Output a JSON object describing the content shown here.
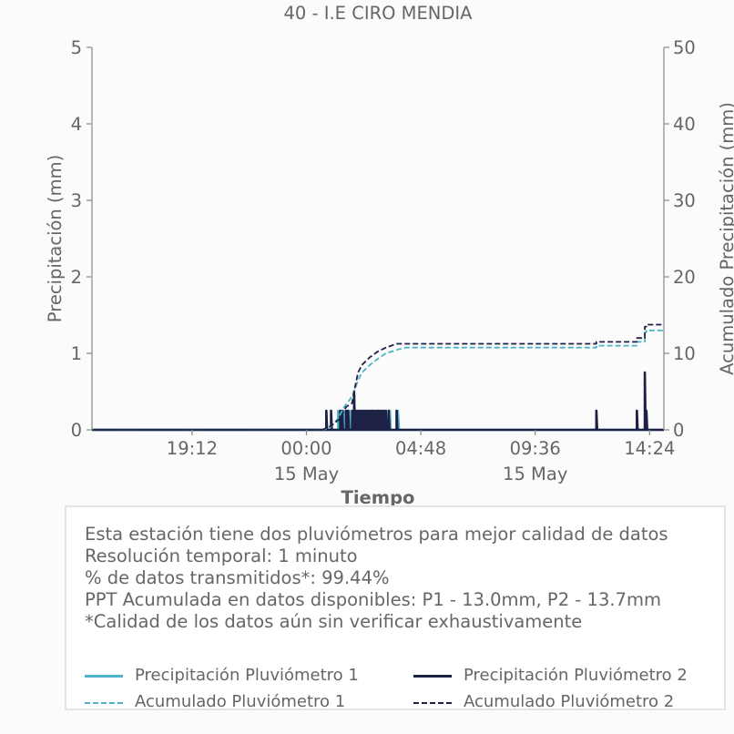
{
  "chart_data": {
    "type": "line",
    "title": "40 - I.E CIRO MENDIA",
    "xlabel": "Tiempo",
    "ylabel": "Precipitación (mm)",
    "y2label": "Acumulado Precipitación (mm)",
    "ylim": [
      0,
      5
    ],
    "y2lim": [
      0,
      50
    ],
    "yticks": [
      "0",
      "1",
      "2",
      "3",
      "4",
      "5"
    ],
    "y2ticks": [
      "0",
      "10",
      "20",
      "30",
      "40",
      "50"
    ],
    "xlim": [
      "2025-05-14T15:00",
      "2025-05-15T15:00"
    ],
    "xticks": [
      {
        "t": "2025-05-14T19:12",
        "label": "19:12",
        "sublabel": ""
      },
      {
        "t": "2025-05-15T00:00",
        "label": "00:00",
        "sublabel": "15 May"
      },
      {
        "t": "2025-05-15T04:48",
        "label": "04:48",
        "sublabel": ""
      },
      {
        "t": "2025-05-15T09:36",
        "label": "09:36",
        "sublabel": "15 May"
      },
      {
        "t": "2025-05-15T14:24",
        "label": "14:24",
        "sublabel": ""
      }
    ],
    "grid": false,
    "legend_position": "bottom",
    "series": [
      {
        "name": "Precipitación Pluviómetro 1",
        "axis": "left",
        "style": "solid",
        "color": "#4fb3c8",
        "points": [
          [
            "2025-05-14T15:00",
            0
          ],
          [
            "2025-05-15T01:20",
            0
          ],
          [
            "2025-05-15T01:20",
            0.25
          ],
          [
            "2025-05-15T01:22",
            0
          ],
          [
            "2025-05-15T01:35",
            0
          ],
          [
            "2025-05-15T01:35",
            0.25
          ],
          [
            "2025-05-15T01:37",
            0
          ],
          [
            "2025-05-15T01:48",
            0
          ],
          [
            "2025-05-15T01:48",
            0.25
          ],
          [
            "2025-05-15T01:50",
            0
          ],
          [
            "2025-05-15T02:00",
            0
          ],
          [
            "2025-05-15T02:00",
            0.25
          ],
          [
            "2025-05-15T02:02",
            0
          ],
          [
            "2025-05-15T02:15",
            0
          ],
          [
            "2025-05-15T02:15",
            0.25
          ],
          [
            "2025-05-15T02:17",
            0
          ],
          [
            "2025-05-15T02:30",
            0
          ],
          [
            "2025-05-15T02:30",
            0.25
          ],
          [
            "2025-05-15T02:32",
            0
          ],
          [
            "2025-05-15T02:45",
            0
          ],
          [
            "2025-05-15T02:45",
            0.25
          ],
          [
            "2025-05-15T02:47",
            0
          ],
          [
            "2025-05-15T03:00",
            0
          ],
          [
            "2025-05-15T03:00",
            0.25
          ],
          [
            "2025-05-15T03:02",
            0
          ],
          [
            "2025-05-15T03:15",
            0
          ],
          [
            "2025-05-15T03:15",
            0.25
          ],
          [
            "2025-05-15T03:17",
            0
          ],
          [
            "2025-05-15T03:30",
            0
          ],
          [
            "2025-05-15T03:30",
            0.25
          ],
          [
            "2025-05-15T03:32",
            0
          ],
          [
            "2025-05-15T03:50",
            0
          ],
          [
            "2025-05-15T03:50",
            0.25
          ],
          [
            "2025-05-15T03:53",
            0
          ],
          [
            "2025-05-15T15:00",
            0
          ]
        ]
      },
      {
        "name": "Precipitación Pluviómetro 2",
        "axis": "left",
        "style": "solid",
        "color": "#1c2145",
        "points": [
          [
            "2025-05-14T15:00",
            0
          ],
          [
            "2025-05-15T00:50",
            0
          ],
          [
            "2025-05-15T00:50",
            0.25
          ],
          [
            "2025-05-15T00:52",
            0
          ],
          [
            "2025-05-15T01:02",
            0
          ],
          [
            "2025-05-15T01:02",
            0.25
          ],
          [
            "2025-05-15T01:04",
            0
          ],
          [
            "2025-05-15T01:25",
            0
          ],
          [
            "2025-05-15T01:25",
            0.25
          ],
          [
            "2025-05-15T01:27",
            0
          ],
          [
            "2025-05-15T01:30",
            0
          ],
          [
            "2025-05-15T01:30",
            0.25
          ],
          [
            "2025-05-15T01:32",
            0
          ],
          [
            "2025-05-15T01:40",
            0
          ],
          [
            "2025-05-15T01:40",
            0.25
          ],
          [
            "2025-05-15T01:42",
            0
          ],
          [
            "2025-05-15T01:45",
            0
          ],
          [
            "2025-05-15T01:45",
            0.25
          ],
          [
            "2025-05-15T01:47",
            0
          ],
          [
            "2025-05-15T01:55",
            0
          ],
          [
            "2025-05-15T01:55",
            0.25
          ],
          [
            "2025-05-15T01:57",
            0
          ],
          [
            "2025-05-15T02:00",
            0
          ],
          [
            "2025-05-15T02:00",
            0.5
          ],
          [
            "2025-05-15T02:02",
            0
          ],
          [
            "2025-05-15T02:05",
            0
          ],
          [
            "2025-05-15T02:05",
            0.25
          ],
          [
            "2025-05-15T02:07",
            0
          ],
          [
            "2025-05-15T02:10",
            0
          ],
          [
            "2025-05-15T02:10",
            0.25
          ],
          [
            "2025-05-15T02:12",
            0
          ],
          [
            "2025-05-15T02:15",
            0
          ],
          [
            "2025-05-15T02:15",
            0.25
          ],
          [
            "2025-05-15T02:17",
            0
          ],
          [
            "2025-05-15T02:20",
            0
          ],
          [
            "2025-05-15T02:20",
            0.25
          ],
          [
            "2025-05-15T02:22",
            0
          ],
          [
            "2025-05-15T02:25",
            0
          ],
          [
            "2025-05-15T02:25",
            0.25
          ],
          [
            "2025-05-15T02:27",
            0
          ],
          [
            "2025-05-15T02:30",
            0
          ],
          [
            "2025-05-15T02:30",
            0.25
          ],
          [
            "2025-05-15T02:32",
            0
          ],
          [
            "2025-05-15T02:35",
            0
          ],
          [
            "2025-05-15T02:35",
            0.25
          ],
          [
            "2025-05-15T02:37",
            0
          ],
          [
            "2025-05-15T02:40",
            0
          ],
          [
            "2025-05-15T02:40",
            0.25
          ],
          [
            "2025-05-15T02:42",
            0
          ],
          [
            "2025-05-15T02:45",
            0
          ],
          [
            "2025-05-15T02:45",
            0.25
          ],
          [
            "2025-05-15T02:47",
            0
          ],
          [
            "2025-05-15T02:50",
            0
          ],
          [
            "2025-05-15T02:50",
            0.25
          ],
          [
            "2025-05-15T02:52",
            0
          ],
          [
            "2025-05-15T02:55",
            0
          ],
          [
            "2025-05-15T02:55",
            0.25
          ],
          [
            "2025-05-15T02:57",
            0
          ],
          [
            "2025-05-15T03:00",
            0
          ],
          [
            "2025-05-15T03:00",
            0.25
          ],
          [
            "2025-05-15T03:02",
            0
          ],
          [
            "2025-05-15T03:05",
            0
          ],
          [
            "2025-05-15T03:05",
            0.25
          ],
          [
            "2025-05-15T03:07",
            0
          ],
          [
            "2025-05-15T03:10",
            0
          ],
          [
            "2025-05-15T03:10",
            0.25
          ],
          [
            "2025-05-15T03:12",
            0
          ],
          [
            "2025-05-15T03:15",
            0
          ],
          [
            "2025-05-15T03:15",
            0.25
          ],
          [
            "2025-05-15T03:17",
            0
          ],
          [
            "2025-05-15T03:20",
            0
          ],
          [
            "2025-05-15T03:20",
            0.25
          ],
          [
            "2025-05-15T03:22",
            0
          ],
          [
            "2025-05-15T03:27",
            0
          ],
          [
            "2025-05-15T03:27",
            0.25
          ],
          [
            "2025-05-15T03:29",
            0
          ],
          [
            "2025-05-15T03:47",
            0
          ],
          [
            "2025-05-15T03:47",
            0.25
          ],
          [
            "2025-05-15T03:49",
            0
          ],
          [
            "2025-05-15T12:10",
            0
          ],
          [
            "2025-05-15T12:10",
            0.25
          ],
          [
            "2025-05-15T12:12",
            0
          ],
          [
            "2025-05-15T13:52",
            0
          ],
          [
            "2025-05-15T13:52",
            0.25
          ],
          [
            "2025-05-15T13:54",
            0
          ],
          [
            "2025-05-15T14:12",
            0
          ],
          [
            "2025-05-15T14:12",
            0.75
          ],
          [
            "2025-05-15T14:14",
            0
          ],
          [
            "2025-05-15T14:16",
            0
          ],
          [
            "2025-05-15T14:16",
            0.25
          ],
          [
            "2025-05-15T14:18",
            0
          ],
          [
            "2025-05-15T15:00",
            0
          ]
        ]
      },
      {
        "name": "Acumulado Pluviómetro 1",
        "axis": "right",
        "style": "dashed",
        "color": "#4fb3c8",
        "points": [
          [
            "2025-05-14T15:00",
            0
          ],
          [
            "2025-05-15T00:40",
            0
          ],
          [
            "2025-05-15T01:00",
            0.3
          ],
          [
            "2025-05-15T01:20",
            1.5
          ],
          [
            "2025-05-15T01:35",
            3.0
          ],
          [
            "2025-05-15T01:50",
            4.0
          ],
          [
            "2025-05-15T02:00",
            5.0
          ],
          [
            "2025-05-15T02:10",
            6.5
          ],
          [
            "2025-05-15T02:20",
            7.5
          ],
          [
            "2025-05-15T02:40",
            8.5
          ],
          [
            "2025-05-15T03:00",
            9.3
          ],
          [
            "2025-05-15T03:20",
            10.0
          ],
          [
            "2025-05-15T03:50",
            10.5
          ],
          [
            "2025-05-15T04:10",
            10.75
          ],
          [
            "2025-05-15T12:10",
            10.75
          ],
          [
            "2025-05-15T12:10",
            11.0
          ],
          [
            "2025-05-15T13:52",
            11.0
          ],
          [
            "2025-05-15T13:52",
            11.5
          ],
          [
            "2025-05-15T14:12",
            11.5
          ],
          [
            "2025-05-15T14:12",
            12.75
          ],
          [
            "2025-05-15T14:16",
            12.75
          ],
          [
            "2025-05-15T14:16",
            13.0
          ],
          [
            "2025-05-15T15:00",
            13.0
          ]
        ]
      },
      {
        "name": "Acumulado Pluviómetro 2",
        "axis": "right",
        "style": "dashed",
        "color": "#1c2145",
        "points": [
          [
            "2025-05-14T15:00",
            0
          ],
          [
            "2025-05-15T00:40",
            0
          ],
          [
            "2025-05-15T00:50",
            0.25
          ],
          [
            "2025-05-15T01:02",
            0.5
          ],
          [
            "2025-05-15T01:25",
            1.5
          ],
          [
            "2025-05-15T01:40",
            3.0
          ],
          [
            "2025-05-15T01:55",
            3.5
          ],
          [
            "2025-05-15T02:00",
            5.0
          ],
          [
            "2025-05-15T02:10",
            7.5
          ],
          [
            "2025-05-15T02:20",
            8.5
          ],
          [
            "2025-05-15T02:40",
            9.5
          ],
          [
            "2025-05-15T03:00",
            10.25
          ],
          [
            "2025-05-15T03:20",
            10.75
          ],
          [
            "2025-05-15T03:47",
            11.25
          ],
          [
            "2025-05-15T12:10",
            11.25
          ],
          [
            "2025-05-15T12:10",
            11.5
          ],
          [
            "2025-05-15T13:52",
            11.5
          ],
          [
            "2025-05-15T13:52",
            12.0
          ],
          [
            "2025-05-15T14:12",
            12.0
          ],
          [
            "2025-05-15T14:12",
            13.5
          ],
          [
            "2025-05-15T14:16",
            13.5
          ],
          [
            "2025-05-15T14:16",
            13.75
          ],
          [
            "2025-05-15T15:00",
            13.75
          ]
        ]
      }
    ]
  },
  "info": {
    "lines": [
      "Esta estación tiene dos pluviómetros para mejor calidad de datos",
      "Resolución temporal: 1 minuto",
      "% de datos transmitidos*: 99.44%",
      "PPT Acumulada en datos disponibles: P1 - 13.0mm, P2 - 13.7mm",
      "*Calidad de los datos aún sin verificar exhaustivamente"
    ]
  },
  "legend": {
    "items": [
      {
        "label": "Precipitación Pluviómetro 1",
        "color": "#4fb3c8",
        "style": "solid"
      },
      {
        "label": "Precipitación Pluviómetro 2",
        "color": "#1c2145",
        "style": "solid"
      },
      {
        "label": "Acumulado Pluviómetro 1",
        "color": "#4fb3c8",
        "style": "dashed"
      },
      {
        "label": "Acumulado Pluviómetro 2",
        "color": "#1c2145",
        "style": "dashed"
      }
    ]
  }
}
